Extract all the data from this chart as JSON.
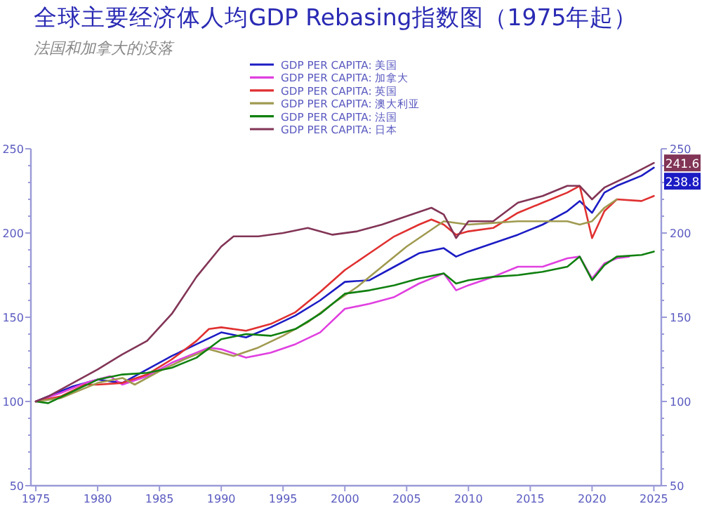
{
  "chart_data": {
    "type": "line",
    "title": "全球主要经济体人均GDP Rebasing指数图（1975年起）",
    "subtitle": "法国和加拿大的没落",
    "legend": "top",
    "grid": false,
    "xlim": [
      1974.6,
      2025.6
    ],
    "xticks": [
      1975,
      1980,
      1985,
      1990,
      1995,
      2000,
      2005,
      2010,
      2015,
      2020,
      2025
    ],
    "ylim": [
      50,
      250
    ],
    "yticks": [
      50,
      {
        "value": 60,
        "label": null
      },
      {
        "value": 70,
        "label": null
      },
      {
        "value": 80,
        "label": null
      },
      {
        "value": 90,
        "label": null
      },
      100,
      {
        "value": 110,
        "label": null
      },
      {
        "value": 120,
        "label": null
      },
      {
        "value": 130,
        "label": null
      },
      {
        "value": 140,
        "label": null
      },
      150,
      {
        "value": 160,
        "label": null
      },
      {
        "value": 170,
        "label": null
      },
      {
        "value": 180,
        "label": null
      },
      {
        "value": 190,
        "label": null
      },
      200,
      {
        "value": 210,
        "label": null
      },
      {
        "value": 220,
        "label": null
      },
      {
        "value": 230,
        "label": null
      },
      {
        "value": 240,
        "label": null
      },
      250
    ],
    "y2lim": [
      50,
      250
    ],
    "y2ticks": [
      50,
      {
        "value": 60,
        "label": null
      },
      {
        "value": 70,
        "label": null
      },
      {
        "value": 80,
        "label": null
      },
      {
        "value": 90,
        "label": null
      },
      100,
      {
        "value": 110,
        "label": null
      },
      {
        "value": 120,
        "label": null
      },
      {
        "value": 130,
        "label": null
      },
      {
        "value": 140,
        "label": null
      },
      150,
      {
        "value": 160,
        "label": null
      },
      {
        "value": 170,
        "label": null
      },
      {
        "value": 180,
        "label": null
      },
      {
        "value": 190,
        "label": null
      },
      200,
      {
        "value": 210,
        "label": null
      },
      {
        "value": 220,
        "label": null
      },
      {
        "value": 230,
        "label": null
      },
      {
        "value": 240,
        "label": null
      },
      250
    ],
    "annotations": [
      {
        "text": "241.6",
        "x": 2025,
        "y": 241.6
      },
      {
        "text": "238.8",
        "x": 2025,
        "y": 238.8
      }
    ],
    "series": [
      {
        "name": "GDP PER CAPITA: 美国",
        "color": "#1c1cc4",
        "x": [
          1975,
          1976,
          1978,
          1980,
          1982,
          1984,
          1986,
          1988,
          1990,
          1992,
          1994,
          1996,
          1998,
          2000,
          2002,
          2004,
          2006,
          2008,
          2009,
          2010,
          2012,
          2014,
          2016,
          2018,
          2019,
          2020,
          2021,
          2022,
          2024,
          2025
        ],
        "values": [
          100,
          103,
          109,
          113,
          111,
          119,
          127,
          134,
          141,
          138,
          144,
          151,
          160,
          171,
          172,
          180,
          188,
          191,
          186,
          189,
          194,
          199,
          205,
          213,
          219,
          212,
          224,
          228,
          234,
          238.8
        ]
      },
      {
        "name": "GDP PER CAPITA: 加拿大",
        "color": "#e040e0",
        "x": [
          1975,
          1977,
          1979,
          1981,
          1982,
          1984,
          1986,
          1988,
          1989,
          1990,
          1992,
          1994,
          1996,
          1998,
          2000,
          2002,
          2004,
          2006,
          2008,
          2009,
          2010,
          2012,
          2014,
          2016,
          2018,
          2019,
          2020,
          2021,
          2022,
          2023
        ],
        "values": [
          100,
          105,
          111,
          115,
          110,
          115,
          123,
          129,
          132,
          131,
          126,
          129,
          134,
          141,
          155,
          158,
          162,
          170,
          176,
          166,
          169,
          174,
          180,
          180,
          185,
          186,
          173,
          182,
          185,
          186
        ]
      },
      {
        "name": "GDP PER CAPITA: 英国",
        "color": "#e03030",
        "x": [
          1975,
          1977,
          1979,
          1980,
          1982,
          1984,
          1986,
          1988,
          1989,
          1990,
          1992,
          1994,
          1996,
          1998,
          2000,
          2002,
          2004,
          2006,
          2007,
          2008,
          2009,
          2010,
          2012,
          2014,
          2016,
          2018,
          2019,
          2020,
          2021,
          2022,
          2024,
          2025
        ],
        "values": [
          100,
          103,
          110,
          110,
          111,
          116,
          125,
          136,
          143,
          144,
          142,
          146,
          153,
          165,
          178,
          188,
          198,
          205,
          208,
          205,
          199,
          201,
          203,
          212,
          218,
          224,
          228,
          197,
          213,
          220,
          219,
          222
        ]
      },
      {
        "name": "GDP PER CAPITA: 澳大利亚",
        "color": "#a09a50",
        "x": [
          1975,
          1977,
          1980,
          1982,
          1983,
          1985,
          1987,
          1989,
          1991,
          1993,
          1995,
          1997,
          1999,
          2001,
          2003,
          2005,
          2007,
          2008,
          2010,
          2012,
          2014,
          2016,
          2018,
          2019,
          2020,
          2021,
          2022
        ],
        "values": [
          100,
          102,
          111,
          114,
          110,
          118,
          125,
          131,
          127,
          132,
          139,
          147,
          158,
          168,
          180,
          192,
          202,
          207,
          205,
          206,
          207,
          207,
          207,
          205,
          207,
          215,
          220
        ]
      },
      {
        "name": "GDP PER CAPITA: 法国",
        "color": "#108010",
        "x": [
          1975,
          1976,
          1978,
          1980,
          1982,
          1984,
          1986,
          1988,
          1990,
          1992,
          1994,
          1996,
          1998,
          2000,
          2002,
          2004,
          2006,
          2008,
          2009,
          2010,
          2012,
          2014,
          2016,
          2018,
          2019,
          2020,
          2021,
          2022,
          2024,
          2025
        ],
        "values": [
          100,
          99,
          106,
          113,
          116,
          117,
          120,
          126,
          137,
          140,
          139,
          143,
          152,
          164,
          166,
          169,
          173,
          176,
          170,
          172,
          174,
          175,
          177,
          180,
          186,
          172,
          181,
          186,
          187,
          189
        ]
      },
      {
        "name": "GDP PER CAPITA: 日本",
        "color": "#823556",
        "x": [
          1975,
          1976,
          1978,
          1980,
          1982,
          1984,
          1986,
          1988,
          1990,
          1991,
          1993,
          1995,
          1997,
          1999,
          2001,
          2003,
          2005,
          2007,
          2008,
          2009,
          2010,
          2012,
          2014,
          2016,
          2018,
          2019,
          2020,
          2021,
          2023,
          2025
        ],
        "values": [
          100,
          103,
          111,
          119,
          128,
          136,
          152,
          174,
          192,
          198,
          198,
          200,
          203,
          199,
          201,
          205,
          210,
          215,
          211,
          197,
          207,
          207,
          218,
          222,
          228,
          228,
          220,
          227,
          234,
          241.6
        ]
      }
    ]
  }
}
